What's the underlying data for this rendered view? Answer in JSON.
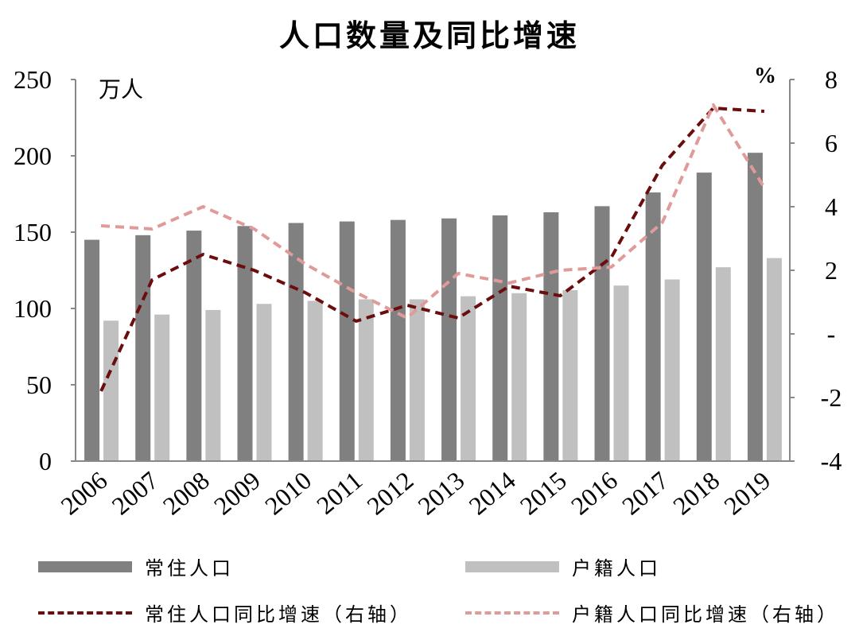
{
  "chart_data": {
    "type": "bar",
    "title": "人口数量及同比增速",
    "left_axis": {
      "unit": "万人",
      "ylim": [
        0,
        250
      ],
      "ticks": [
        "0",
        "50",
        "100",
        "150",
        "200",
        "250"
      ]
    },
    "right_axis": {
      "unit": "%",
      "ylim": [
        -4,
        8
      ],
      "ticks": [
        "-4",
        "-2",
        "-",
        "2",
        "4",
        "6",
        "8"
      ]
    },
    "categories": [
      "2006",
      "2007",
      "2008",
      "2009",
      "2010",
      "2011",
      "2012",
      "2013",
      "2014",
      "2015",
      "2016",
      "2017",
      "2018",
      "2019"
    ],
    "series": [
      {
        "name": "常住人口",
        "type": "bar",
        "axis": "left",
        "color": "#808080",
        "values": [
          145,
          148,
          151,
          154,
          156,
          157,
          158,
          159,
          161,
          163,
          167,
          176,
          189,
          202
        ]
      },
      {
        "name": "户籍人口",
        "type": "bar",
        "axis": "left",
        "color": "#c0c0c0",
        "values": [
          92,
          96,
          99,
          103,
          105,
          106,
          106,
          108,
          110,
          112,
          115,
          119,
          127,
          133
        ]
      },
      {
        "name": "常住人口同比增速（右轴）",
        "type": "line",
        "axis": "right",
        "color": "#6b0d0d",
        "values": [
          -1.8,
          1.7,
          2.5,
          2.0,
          1.3,
          0.4,
          0.9,
          0.5,
          1.5,
          1.2,
          2.4,
          5.3,
          7.1,
          7.0
        ]
      },
      {
        "name": "户籍人口同比增速（右轴）",
        "type": "line",
        "axis": "right",
        "color": "#e09a9a",
        "values": [
          3.4,
          3.3,
          4.0,
          3.3,
          2.2,
          1.3,
          0.5,
          1.9,
          1.6,
          2.0,
          2.1,
          3.5,
          7.2,
          4.6
        ]
      }
    ],
    "grid": false,
    "legend_position": "bottom"
  }
}
